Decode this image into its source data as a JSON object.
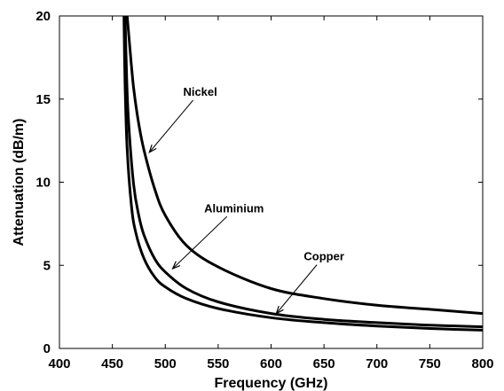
{
  "chart_data": {
    "type": "line",
    "title": "",
    "xlabel": "Frequency (GHz)",
    "ylabel": "Attenuation (dB/m)",
    "xlim": [
      400,
      800
    ],
    "ylim": [
      0,
      20
    ],
    "grid": false,
    "legend": "none",
    "x_ticks": [
      400,
      450,
      500,
      550,
      600,
      650,
      700,
      750,
      800
    ],
    "y_ticks": [
      0,
      5,
      10,
      15,
      20
    ],
    "line_color": "#000000",
    "series": [
      {
        "name": "Nickel",
        "x": [
          464,
          466,
          470,
          475,
          480,
          490,
          500,
          520,
          550,
          600,
          650,
          700,
          750,
          800
        ],
        "y": [
          20,
          18.5,
          15.7,
          13.5,
          11.9,
          9.6,
          8.0,
          6.2,
          4.9,
          3.6,
          3.0,
          2.6,
          2.35,
          2.1
        ]
      },
      {
        "name": "Aluminium",
        "x": [
          462,
          463,
          465,
          470,
          475,
          480,
          490,
          500,
          520,
          550,
          600,
          650,
          700,
          750,
          800
        ],
        "y": [
          20,
          17.5,
          14.0,
          9.9,
          8.0,
          6.8,
          5.4,
          4.6,
          3.6,
          2.8,
          2.1,
          1.75,
          1.55,
          1.4,
          1.3
        ]
      },
      {
        "name": "Copper",
        "x": [
          461,
          462,
          464,
          468,
          472,
          480,
          490,
          500,
          520,
          550,
          600,
          650,
          700,
          750,
          800
        ],
        "y": [
          20,
          16.0,
          12.0,
          8.6,
          7.0,
          5.4,
          4.3,
          3.7,
          3.0,
          2.4,
          1.85,
          1.55,
          1.35,
          1.2,
          1.1
        ]
      }
    ],
    "annotations": [
      {
        "text": "Nickel",
        "series": "Nickel",
        "text_at": [
          533,
          15.2
        ],
        "arrow_to": [
          485,
          11.8
        ]
      },
      {
        "text": "Aluminium",
        "series": "Aluminium",
        "text_at": [
          565,
          8.2
        ],
        "arrow_to": [
          507,
          4.8
        ]
      },
      {
        "text": "Copper",
        "series": "Copper",
        "text_at": [
          650,
          5.3
        ],
        "arrow_to": [
          605,
          2.1
        ]
      }
    ]
  }
}
